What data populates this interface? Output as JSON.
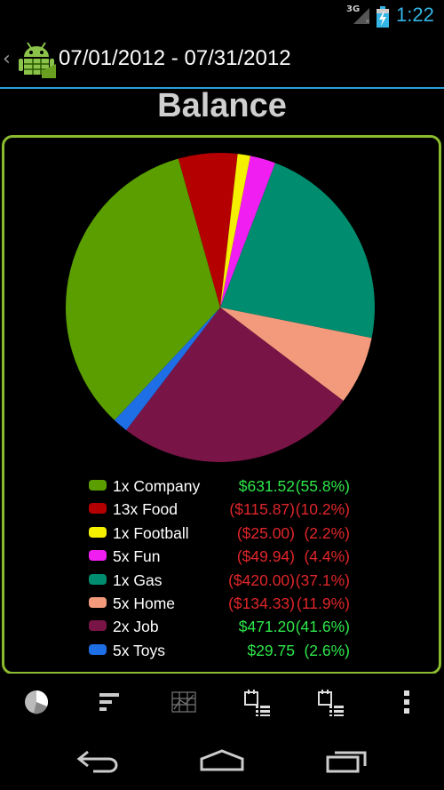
{
  "status_bar": {
    "network": "3G",
    "time": "1:22"
  },
  "action_bar": {
    "title": "07/01/2012 - 07/31/2012",
    "app_icon": "android-ledger-icon"
  },
  "heading": "Balance",
  "colors": {
    "accent_blue": "#33b5e5",
    "panel_border": "#8bbb2e",
    "positive": "#2ee64a",
    "negative": "#e0262a"
  },
  "legend": [
    {
      "label": "1x Company",
      "amount": "$631.52",
      "percent": "(55.8%)",
      "sign": "pos",
      "color": "#5a9e00"
    },
    {
      "label": "13x Food",
      "amount": "($115.87)",
      "percent": "(10.2%)",
      "sign": "neg",
      "color": "#b40000"
    },
    {
      "label": "1x Football",
      "amount": "($25.00)",
      "percent": "(2.2%)",
      "sign": "neg",
      "color": "#f4f000"
    },
    {
      "label": "5x Fun",
      "amount": "($49.94)",
      "percent": "(4.4%)",
      "sign": "neg",
      "color": "#f01ef0"
    },
    {
      "label": "1x Gas",
      "amount": "($420.00)",
      "percent": "(37.1%)",
      "sign": "neg",
      "color": "#008c6e"
    },
    {
      "label": "5x Home",
      "amount": "($134.33)",
      "percent": "(11.9%)",
      "sign": "neg",
      "color": "#f49a7c"
    },
    {
      "label": "2x Job",
      "amount": "$471.20",
      "percent": "(41.6%)",
      "sign": "pos",
      "color": "#781446"
    },
    {
      "label": "5x Toys",
      "amount": "$29.75",
      "percent": "(2.6%)",
      "sign": "pos",
      "color": "#1e6ee6"
    }
  ],
  "chart_data": {
    "type": "pie",
    "slices": [
      {
        "label": "1x Gas",
        "value": 420.0,
        "color": "#008c6e"
      },
      {
        "label": "5x Home",
        "value": 134.33,
        "color": "#f49a7c"
      },
      {
        "label": "2x Job",
        "value": 471.2,
        "color": "#781446"
      },
      {
        "label": "5x Toys",
        "value": 29.75,
        "color": "#1e6ee6"
      },
      {
        "label": "1x Company",
        "value": 631.52,
        "color": "#5a9e00"
      },
      {
        "label": "13x Food",
        "value": 115.87,
        "color": "#b40000"
      },
      {
        "label": "1x Football",
        "value": 25.0,
        "color": "#f4f000"
      },
      {
        "label": "5x Fun",
        "value": 49.94,
        "color": "#f01ef0"
      }
    ]
  },
  "toolbar": [
    {
      "icon": "pie-chart-icon"
    },
    {
      "icon": "bar-list-icon"
    },
    {
      "icon": "grid-chart-icon"
    },
    {
      "icon": "calendar-list-icon"
    },
    {
      "icon": "calendar-range-icon"
    },
    {
      "icon": "overflow-menu-icon"
    }
  ],
  "nav_bar": [
    {
      "icon": "back-icon"
    },
    {
      "icon": "home-icon"
    },
    {
      "icon": "recent-apps-icon"
    }
  ]
}
